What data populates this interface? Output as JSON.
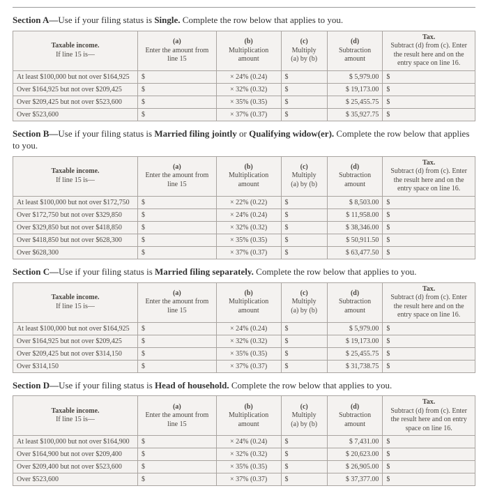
{
  "columns_normal": {
    "income_t": "Taxable income.",
    "income_s": "If line 15 is—",
    "a_t": "(a)",
    "a_s": "Enter the amount from line 15",
    "b_t": "(b)",
    "b_s": "Multiplication amount",
    "c_t": "(c)",
    "c_m": "Multiply",
    "c_s": "(a) by (b)",
    "d_t": "(d)",
    "d_s": "Subtraction amount",
    "tax_t": "Tax.",
    "tax_s": "Subtract (d) from (c). Enter the result here and on the entry space on line 16."
  },
  "columns_d": {
    "tax_s": "Subtract (d) from (c). Enter the result here and on entry space on line 16."
  },
  "sections": [
    {
      "id": "A",
      "title_prefix": "Section A—",
      "title_text1": "Use if your filing status is ",
      "title_bold": "Single.",
      "title_text2": " Complete the row below that applies to you.",
      "rows": [
        {
          "income": "At least $100,000 but not over $164,925",
          "b": "× 24% (0.24)",
          "d": "$ 5,979.00"
        },
        {
          "income": "Over $164,925 but not over $209,425",
          "b": "× 32% (0.32)",
          "d": "$ 19,173.00"
        },
        {
          "income": "Over $209,425 but not over $523,600",
          "b": "× 35% (0.35)",
          "d": "$ 25,455.75"
        },
        {
          "income": "Over $523,600",
          "b": "× 37% (0.37)",
          "d": "$ 35,927.75"
        }
      ]
    },
    {
      "id": "B",
      "title_prefix": "Section B—",
      "title_text1": "Use if your filing status is ",
      "title_bold": "Married filing jointly",
      "title_text2": " or ",
      "title_bold2": "Qualifying widow(er).",
      "title_text3": " Complete the row below that applies to you.",
      "rows": [
        {
          "income": "At least $100,000 but not over $172,750",
          "b": "× 22% (0.22)",
          "d": "$ 8,503.00"
        },
        {
          "income": "Over $172,750 but not over $329,850",
          "b": "× 24% (0.24)",
          "d": "$ 11,958.00"
        },
        {
          "income": "Over $329,850 but not over $418,850",
          "b": "× 32% (0.32)",
          "d": "$ 38,346.00"
        },
        {
          "income": "Over $418,850 but not over $628,300",
          "b": "× 35% (0.35)",
          "d": "$ 50,911.50"
        },
        {
          "income": "Over $628,300",
          "b": "× 37% (0.37)",
          "d": "$ 63,477.50"
        }
      ]
    },
    {
      "id": "C",
      "title_prefix": "Section C—",
      "title_text1": "Use if your filing status is ",
      "title_bold": "Married filing separately.",
      "title_text2": " Complete the row below that applies to you.",
      "rows": [
        {
          "income": "At least $100,000 but not over $164,925",
          "b": "× 24% (0.24)",
          "d": "$ 5,979.00"
        },
        {
          "income": "Over $164,925 but not over $209,425",
          "b": "× 32% (0.32)",
          "d": "$ 19,173.00"
        },
        {
          "income": "Over $209,425 but not over $314,150",
          "b": "× 35% (0.35)",
          "d": "$ 25,455.75"
        },
        {
          "income": "Over $314,150",
          "b": "× 37% (0.37)",
          "d": "$ 31,738.75"
        }
      ]
    },
    {
      "id": "D",
      "title_prefix": "Section D—",
      "title_text1": "Use if your filing status is ",
      "title_bold": "Head of household.",
      "title_text2": " Complete the row below that applies to you.",
      "rows": [
        {
          "income": "At least $100,000 but not over $164,900",
          "b": "× 24% (0.24)",
          "d": "$ 7,431.00"
        },
        {
          "income": "Over $164,900 but not over $209,400",
          "b": "× 32% (0.32)",
          "d": "$ 20,623.00"
        },
        {
          "income": "Over $209,400 but not over $523,600",
          "b": "× 35% (0.35)",
          "d": "$ 26,905.00"
        },
        {
          "income": "Over $523,600",
          "b": "× 37% (0.37)",
          "d": "$ 37,377.00"
        }
      ]
    }
  ]
}
